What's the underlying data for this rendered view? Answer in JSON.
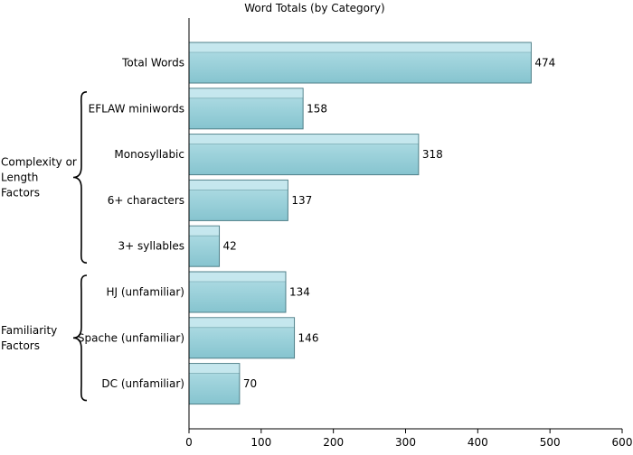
{
  "chart_data": {
    "type": "bar",
    "orientation": "horizontal",
    "title": "Word Totals (by Category)",
    "categories": [
      "Total Words",
      "EFLAW miniwords",
      "Monosyllabic",
      "6+ characters",
      "3+ syllables",
      "HJ (unfamiliar)",
      "Spache (unfamiliar)",
      "DC (unfamiliar)"
    ],
    "values": [
      474,
      158,
      318,
      137,
      42,
      134,
      146,
      70
    ],
    "xlim": [
      0,
      600
    ],
    "xticks": [
      0,
      100,
      200,
      300,
      400,
      500,
      600
    ],
    "grid": false,
    "bar_color": "#8ccbd5",
    "bar_highlight": "#c8e8ee",
    "bar_edge": "#4f7f88",
    "groups": [
      {
        "label_lines": [
          "Complexity or",
          "Length",
          "Factors"
        ],
        "first": 1,
        "last": 4
      },
      {
        "label_lines": [
          "Familiarity",
          "Factors"
        ],
        "first": 5,
        "last": 7
      }
    ]
  }
}
